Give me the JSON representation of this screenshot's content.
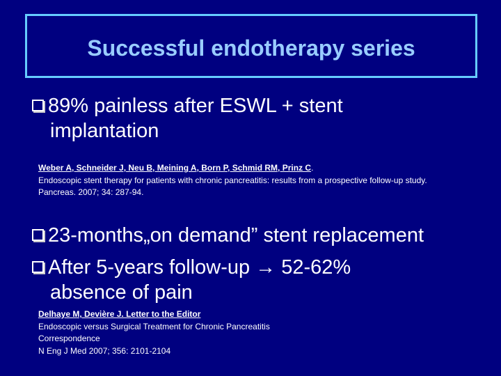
{
  "title": "Successful endotherapy series",
  "bullets": [
    {
      "lines": [
        "89% painless after ESWL + stent",
        "implantation"
      ]
    },
    {
      "lines": [
        "23-months„on demand” stent replacement"
      ]
    },
    {
      "lines": [
        "After 5-years follow-up → 52-62%",
        "absence of pain"
      ]
    }
  ],
  "references": [
    {
      "authors": "Weber A, Schneider J, Neu B, Meining A, Born P, Schmid RM, Prinz C",
      "authors_end": ".",
      "lines": [
        "Endoscopic stent therapy for patients with chronic pancreatitis: results from a prospective follow-up study.",
        "Pancreas. 2007; 34: 287-94."
      ]
    },
    {
      "authors": "Delhaye M, Devière J. Letter to the Editor",
      "authors_end": "",
      "lines": [
        "Endoscopic versus Surgical Treatment for Chronic Pancreatitis",
        "Correspondence",
        "N Eng J Med 2007; 356: 2101-2104"
      ]
    }
  ]
}
